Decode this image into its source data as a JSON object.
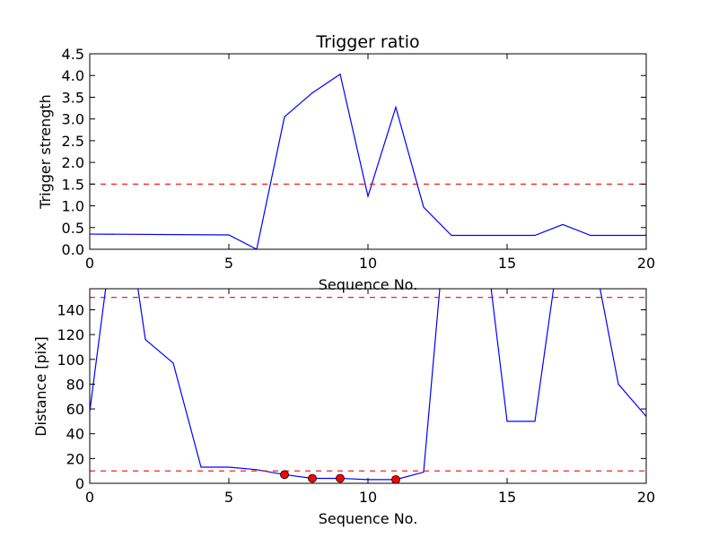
{
  "chart_data": [
    {
      "type": "line",
      "title": "Trigger ratio",
      "xlabel": "Sequence No.",
      "ylabel": "Trigger strength",
      "xlim": [
        0,
        20
      ],
      "ylim": [
        0,
        4.5
      ],
      "xticks": [
        0,
        5,
        10,
        15,
        20
      ],
      "yticks": [
        0.0,
        0.5,
        1.0,
        1.5,
        2.0,
        2.5,
        3.0,
        3.5,
        4.0,
        4.5
      ],
      "ytick_labels": [
        "0.0",
        "0.5",
        "1.0",
        "1.5",
        "2.0",
        "2.5",
        "3.0",
        "3.5",
        "4.0",
        "4.5"
      ],
      "grid": false,
      "series": [
        {
          "color": "#0000ff",
          "x": [
            0,
            5,
            6,
            7,
            8,
            9,
            10,
            11,
            12,
            13,
            16,
            17,
            18,
            20
          ],
          "y": [
            0.35,
            0.33,
            0.0,
            3.05,
            3.6,
            4.03,
            1.22,
            3.27,
            0.97,
            0.32,
            0.32,
            0.57,
            0.32,
            0.32
          ]
        }
      ],
      "threshold_lines": [
        {
          "y": 1.5,
          "color": "#ff0000",
          "style": "dashed"
        }
      ]
    },
    {
      "type": "line",
      "title": "",
      "xlabel": "Sequence No.",
      "ylabel": "Distance [pix]",
      "xlim": [
        0,
        20
      ],
      "ylim": [
        0,
        157
      ],
      "xticks": [
        0,
        5,
        10,
        15,
        20
      ],
      "yticks": [
        0,
        20,
        40,
        60,
        80,
        100,
        120,
        140
      ],
      "ytick_labels": [
        "0",
        "20",
        "40",
        "60",
        "80",
        "100",
        "120",
        "140"
      ],
      "grid": false,
      "series": [
        {
          "color": "#0000ff",
          "x": [
            0,
            0.6,
            1.7,
            2,
            3,
            4,
            5,
            6,
            7,
            8,
            9,
            10,
            11,
            12,
            12.6,
            14.4,
            15,
            16,
            16.7,
            18.3,
            19,
            20
          ],
          "y": [
            58,
            162,
            162,
            116,
            97,
            13,
            13,
            11,
            7,
            4,
            4,
            3,
            3,
            9,
            162,
            162,
            50,
            50,
            162,
            162,
            80,
            54
          ]
        }
      ],
      "markers": {
        "color": "#ff0000",
        "x": [
          7,
          8,
          9,
          11
        ],
        "y": [
          7,
          4,
          4,
          3
        ]
      },
      "threshold_lines": [
        {
          "y": 10,
          "color": "#ff0000",
          "style": "dashed"
        },
        {
          "y": 150,
          "color": "#ff0000",
          "style": "dashed"
        }
      ]
    }
  ]
}
